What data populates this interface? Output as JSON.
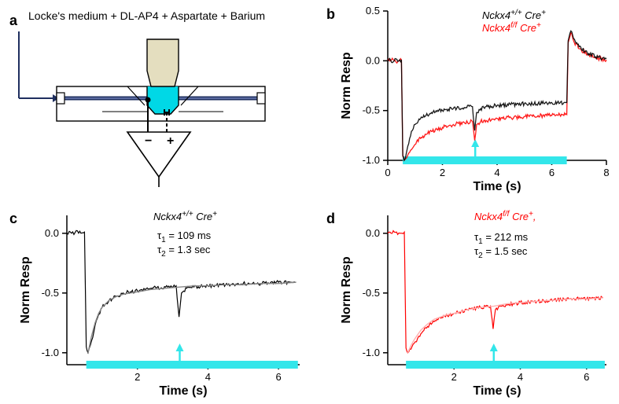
{
  "panelA": {
    "label": "a",
    "title": "Locke's medium + DL-AP4 + Aspartate + Barium",
    "colors": {
      "line": "#1f2f5f",
      "light": "#00d8e6",
      "lens": "#e4debf",
      "stroke": "#000000"
    }
  },
  "panelB": {
    "label": "b",
    "legend_wt": "Nckx4",
    "legend_wt_sup": "+/+",
    "legend_wt_cre": " Cre",
    "legend_wt_cresup": "+",
    "legend_ko": "Nckx4",
    "legend_ko_sup": "f/f",
    "legend_ko_cre": " Cre",
    "legend_ko_cresup": "+",
    "xlabel": "Time (s)",
    "ylabel": "Norm Resp",
    "xlim": [
      0,
      8
    ],
    "ylim": [
      -1.0,
      0.5
    ],
    "xticks": [
      0,
      2,
      4,
      6,
      8
    ],
    "yticks": [
      -1.0,
      -0.5,
      0.0,
      0.5
    ],
    "light_on": 0.55,
    "light_off": 6.55,
    "arrow_at": 3.2,
    "colors": {
      "wt": "#000000",
      "ko": "#ff0000",
      "light": "#33e6ea",
      "axis": "#000000",
      "bg": "#ffffff"
    },
    "wt_data": [
      [
        0.0,
        0.0
      ],
      [
        0.1,
        0.01
      ],
      [
        0.2,
        -0.01
      ],
      [
        0.3,
        0.02
      ],
      [
        0.4,
        0.0
      ],
      [
        0.5,
        0.01
      ],
      [
        0.55,
        -0.95
      ],
      [
        0.6,
        -1.0
      ],
      [
        0.7,
        -0.9
      ],
      [
        0.8,
        -0.78
      ],
      [
        0.9,
        -0.7
      ],
      [
        1.0,
        -0.64
      ],
      [
        1.2,
        -0.58
      ],
      [
        1.4,
        -0.55
      ],
      [
        1.6,
        -0.52
      ],
      [
        1.8,
        -0.51
      ],
      [
        2.0,
        -0.5
      ],
      [
        2.4,
        -0.48
      ],
      [
        2.8,
        -0.47
      ],
      [
        3.1,
        -0.46
      ],
      [
        3.18,
        -0.7
      ],
      [
        3.25,
        -0.52
      ],
      [
        3.4,
        -0.48
      ],
      [
        3.6,
        -0.46
      ],
      [
        4.0,
        -0.45
      ],
      [
        4.5,
        -0.44
      ],
      [
        5.0,
        -0.43
      ],
      [
        5.5,
        -0.43
      ],
      [
        6.0,
        -0.42
      ],
      [
        6.5,
        -0.42
      ],
      [
        6.55,
        -0.42
      ],
      [
        6.6,
        0.2
      ],
      [
        6.7,
        0.3
      ],
      [
        6.8,
        0.22
      ],
      [
        7.0,
        0.14
      ],
      [
        7.3,
        0.08
      ],
      [
        7.6,
        0.04
      ],
      [
        8.0,
        0.02
      ]
    ],
    "ko_data": [
      [
        0.0,
        0.0
      ],
      [
        0.1,
        0.0
      ],
      [
        0.2,
        0.01
      ],
      [
        0.3,
        -0.01
      ],
      [
        0.4,
        0.0
      ],
      [
        0.5,
        0.01
      ],
      [
        0.55,
        -0.96
      ],
      [
        0.6,
        -1.0
      ],
      [
        0.7,
        -0.97
      ],
      [
        0.8,
        -0.92
      ],
      [
        0.9,
        -0.88
      ],
      [
        1.0,
        -0.84
      ],
      [
        1.2,
        -0.78
      ],
      [
        1.4,
        -0.74
      ],
      [
        1.6,
        -0.71
      ],
      [
        1.8,
        -0.69
      ],
      [
        2.0,
        -0.67
      ],
      [
        2.4,
        -0.64
      ],
      [
        2.8,
        -0.62
      ],
      [
        3.1,
        -0.61
      ],
      [
        3.18,
        -0.8
      ],
      [
        3.25,
        -0.64
      ],
      [
        3.4,
        -0.61
      ],
      [
        3.6,
        -0.6
      ],
      [
        4.0,
        -0.58
      ],
      [
        4.5,
        -0.57
      ],
      [
        5.0,
        -0.56
      ],
      [
        5.5,
        -0.55
      ],
      [
        6.0,
        -0.55
      ],
      [
        6.5,
        -0.54
      ],
      [
        6.55,
        -0.54
      ],
      [
        6.6,
        0.18
      ],
      [
        6.7,
        0.28
      ],
      [
        6.8,
        0.2
      ],
      [
        7.0,
        0.12
      ],
      [
        7.3,
        0.07
      ],
      [
        7.6,
        0.03
      ],
      [
        8.0,
        0.01
      ]
    ]
  },
  "panelC": {
    "label": "c",
    "legend": "Nckx4",
    "legend_sup": "+/+",
    "legend_cre": " Cre",
    "legend_cresup": "+",
    "tau1_label": "τ",
    "tau1_sub": "1",
    "tau1_val": " = 109 ms",
    "tau2_label": "τ",
    "tau2_sub": "2",
    "tau2_val": " = 1.3 sec",
    "xlabel": "Time (s)",
    "ylabel": "Norm Resp",
    "xlim": [
      0,
      6.6
    ],
    "ylim": [
      -1.1,
      0.15
    ],
    "xticks": [
      2,
      4,
      6
    ],
    "yticks": [
      -1.0,
      -0.5,
      0.0
    ],
    "light_on": 0.55,
    "light_off": 6.55,
    "arrow_at": 3.2,
    "color": "#000000",
    "light_color": "#33e6ea",
    "data": [
      [
        0.0,
        0.0
      ],
      [
        0.1,
        0.01
      ],
      [
        0.2,
        -0.01
      ],
      [
        0.3,
        0.02
      ],
      [
        0.4,
        0.0
      ],
      [
        0.5,
        0.01
      ],
      [
        0.55,
        -0.95
      ],
      [
        0.6,
        -1.0
      ],
      [
        0.7,
        -0.9
      ],
      [
        0.8,
        -0.77
      ],
      [
        0.9,
        -0.68
      ],
      [
        1.0,
        -0.62
      ],
      [
        1.2,
        -0.56
      ],
      [
        1.4,
        -0.53
      ],
      [
        1.6,
        -0.5
      ],
      [
        1.8,
        -0.49
      ],
      [
        2.0,
        -0.48
      ],
      [
        2.4,
        -0.46
      ],
      [
        2.8,
        -0.45
      ],
      [
        3.1,
        -0.44
      ],
      [
        3.18,
        -0.7
      ],
      [
        3.25,
        -0.5
      ],
      [
        3.4,
        -0.46
      ],
      [
        3.6,
        -0.45
      ],
      [
        4.0,
        -0.44
      ],
      [
        4.5,
        -0.43
      ],
      [
        5.0,
        -0.42
      ],
      [
        5.5,
        -0.42
      ],
      [
        6.0,
        -0.41
      ],
      [
        6.5,
        -0.41
      ]
    ],
    "fit": [
      [
        0.6,
        -1.0
      ],
      [
        0.7,
        -0.86
      ],
      [
        0.8,
        -0.75
      ],
      [
        0.9,
        -0.67
      ],
      [
        1.0,
        -0.62
      ],
      [
        1.2,
        -0.56
      ],
      [
        1.4,
        -0.53
      ],
      [
        1.6,
        -0.51
      ],
      [
        1.8,
        -0.5
      ],
      [
        2.0,
        -0.49
      ],
      [
        2.4,
        -0.47
      ],
      [
        2.8,
        -0.46
      ],
      [
        3.2,
        -0.45
      ],
      [
        3.6,
        -0.44
      ],
      [
        4.0,
        -0.44
      ],
      [
        4.5,
        -0.43
      ],
      [
        5.0,
        -0.43
      ],
      [
        5.5,
        -0.42
      ],
      [
        6.0,
        -0.42
      ],
      [
        6.5,
        -0.41
      ]
    ]
  },
  "panelD": {
    "label": "d",
    "legend": "Nckx4",
    "legend_sup": "f/f",
    "legend_cre": " Cre",
    "legend_cresup": "+",
    "legend_comma": ",",
    "tau1_label": "τ",
    "tau1_sub": "1",
    "tau1_val": " = 212 ms",
    "tau2_label": "τ",
    "tau2_sub": "2",
    "tau2_val": " = 1.5 sec",
    "xlabel": "Time (s)",
    "ylabel": "Norm Resp",
    "xlim": [
      0,
      6.6
    ],
    "ylim": [
      -1.1,
      0.15
    ],
    "xticks": [
      2,
      4,
      6
    ],
    "yticks": [
      -1.0,
      -0.5,
      0.0
    ],
    "light_on": 0.55,
    "light_off": 6.55,
    "arrow_at": 3.2,
    "color": "#ff0000",
    "light_color": "#33e6ea",
    "data": [
      [
        0.0,
        0.0
      ],
      [
        0.1,
        0.0
      ],
      [
        0.2,
        0.01
      ],
      [
        0.3,
        -0.01
      ],
      [
        0.4,
        0.0
      ],
      [
        0.5,
        0.01
      ],
      [
        0.55,
        -0.96
      ],
      [
        0.6,
        -1.0
      ],
      [
        0.7,
        -0.97
      ],
      [
        0.8,
        -0.92
      ],
      [
        0.9,
        -0.88
      ],
      [
        1.0,
        -0.84
      ],
      [
        1.2,
        -0.78
      ],
      [
        1.4,
        -0.74
      ],
      [
        1.6,
        -0.71
      ],
      [
        1.8,
        -0.69
      ],
      [
        2.0,
        -0.67
      ],
      [
        2.4,
        -0.64
      ],
      [
        2.8,
        -0.62
      ],
      [
        3.1,
        -0.61
      ],
      [
        3.18,
        -0.8
      ],
      [
        3.25,
        -0.64
      ],
      [
        3.4,
        -0.61
      ],
      [
        3.6,
        -0.6
      ],
      [
        4.0,
        -0.58
      ],
      [
        4.5,
        -0.57
      ],
      [
        5.0,
        -0.56
      ],
      [
        5.5,
        -0.55
      ],
      [
        6.0,
        -0.55
      ],
      [
        6.5,
        -0.54
      ]
    ],
    "fit": [
      [
        0.6,
        -1.0
      ],
      [
        0.7,
        -0.94
      ],
      [
        0.8,
        -0.89
      ],
      [
        0.9,
        -0.85
      ],
      [
        1.0,
        -0.81
      ],
      [
        1.2,
        -0.76
      ],
      [
        1.4,
        -0.72
      ],
      [
        1.6,
        -0.7
      ],
      [
        1.8,
        -0.68
      ],
      [
        2.0,
        -0.67
      ],
      [
        2.4,
        -0.64
      ],
      [
        2.8,
        -0.62
      ],
      [
        3.2,
        -0.61
      ],
      [
        3.6,
        -0.59
      ],
      [
        4.0,
        -0.58
      ],
      [
        4.5,
        -0.57
      ],
      [
        5.0,
        -0.56
      ],
      [
        5.5,
        -0.55
      ],
      [
        6.0,
        -0.55
      ],
      [
        6.5,
        -0.54
      ]
    ]
  }
}
